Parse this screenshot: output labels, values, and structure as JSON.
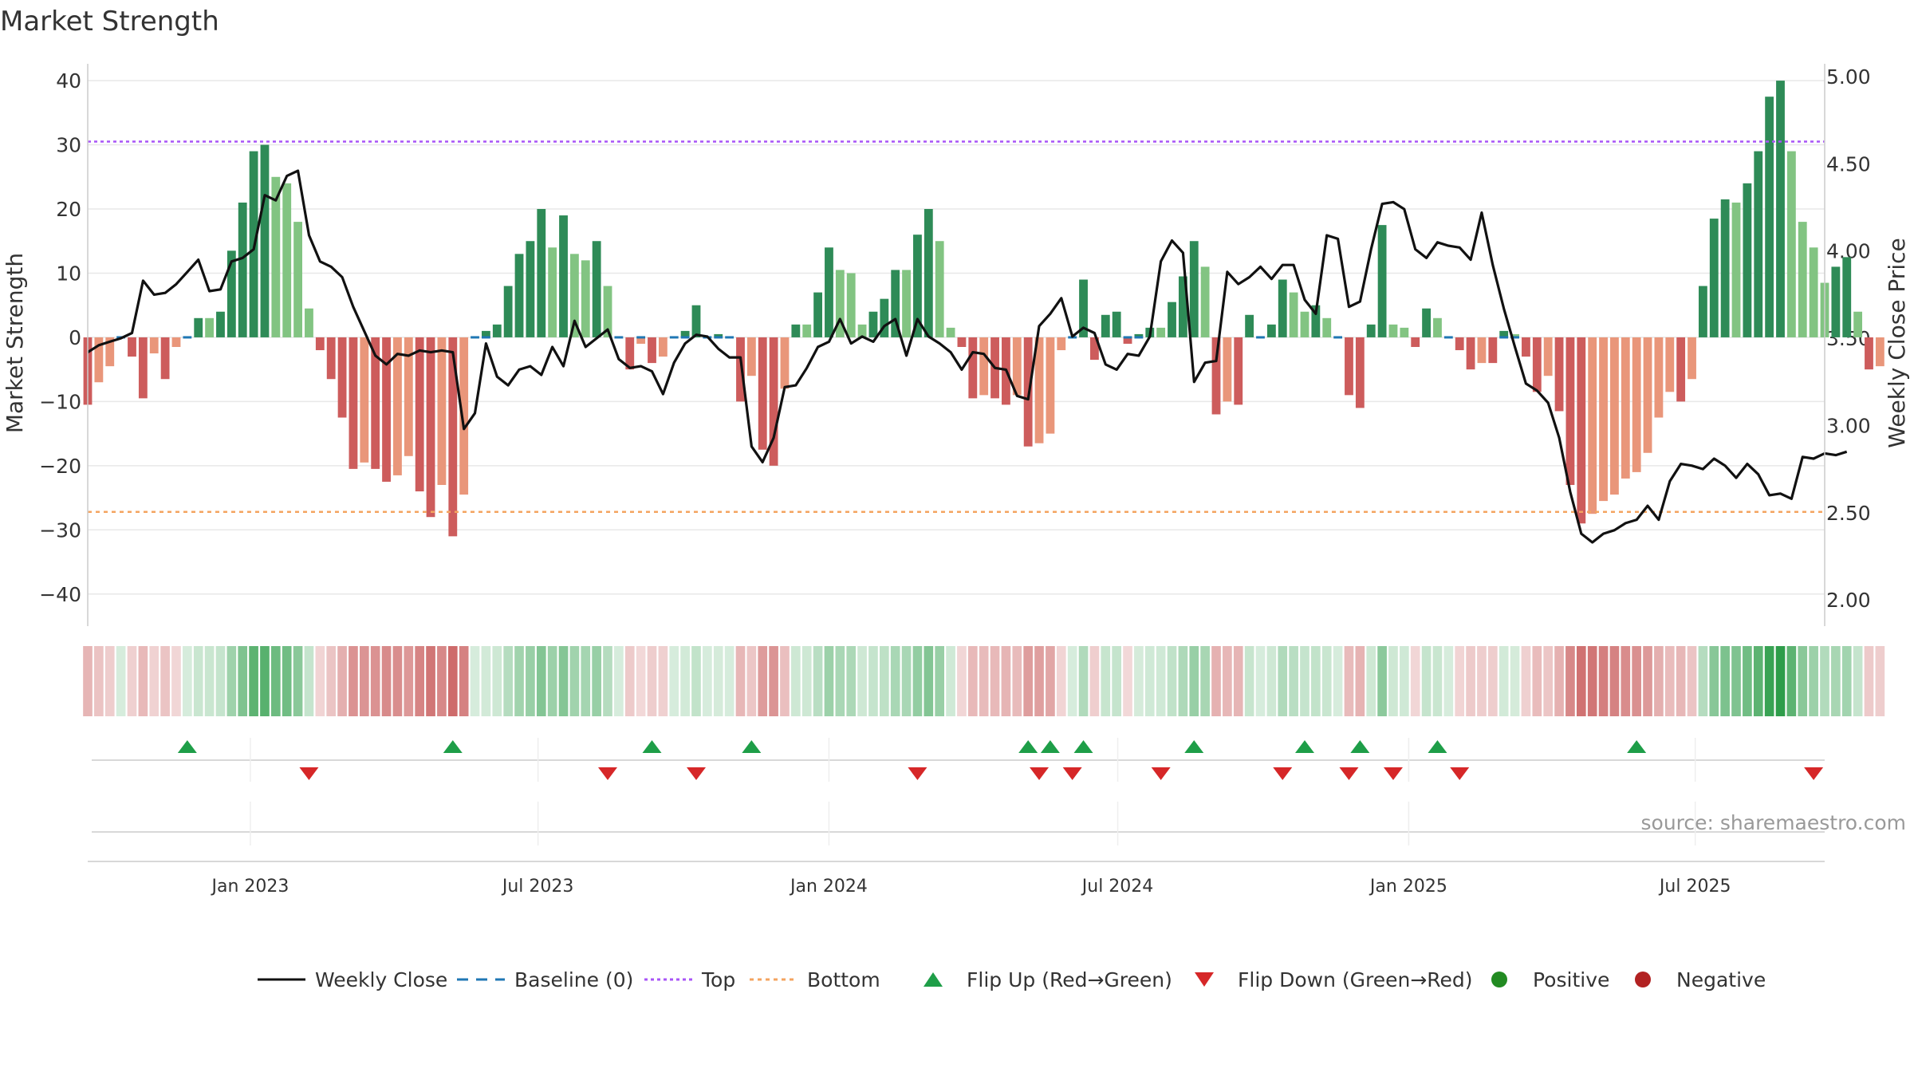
{
  "chart_data": {
    "type": "bar",
    "title": "Market Strength",
    "ylabel_left": "Market Strength",
    "ylabel_right": "Weekly Close Price",
    "source": "source: sharemaestro.com",
    "ylim_left": [
      -45,
      42
    ],
    "ylim_right": [
      1.85,
      5.05
    ],
    "yticks_left": [
      40,
      30,
      20,
      10,
      0,
      -10,
      -20,
      -30,
      -40
    ],
    "ytick_labels_left": [
      "40",
      "30",
      "20",
      "10",
      "0",
      "−10",
      "−20",
      "−30",
      "−40"
    ],
    "yticks_right": [
      5.0,
      4.5,
      4.0,
      3.5,
      3.0,
      2.5,
      2.0
    ],
    "ytick_labels_right": [
      "5.00",
      "4.50",
      "4.00",
      "3.50",
      "3.00",
      "2.50",
      "2.00"
    ],
    "x_range_weeks": [
      0,
      157
    ],
    "x_ticks": [
      {
        "label": "Jan 2023",
        "week": 14.7
      },
      {
        "label": "Jul 2023",
        "week": 40.7
      },
      {
        "label": "Jan 2024",
        "week": 67.0
      },
      {
        "label": "Jul 2024",
        "week": 93.1
      },
      {
        "label": "Jan 2025",
        "week": 119.4
      },
      {
        "label": "Jul 2025",
        "week": 145.3
      }
    ],
    "top_level": 30.5,
    "bottom_level": -27.2,
    "strength": [
      -10.5,
      -7,
      -4.5,
      0,
      -3,
      -9.5,
      -2.5,
      -6.5,
      -1.5,
      0,
      3,
      3,
      4,
      13.5,
      21,
      29,
      30,
      25,
      24,
      18,
      4.5,
      -2,
      -6.5,
      -12.5,
      -20.5,
      -19.5,
      -20.5,
      -22.5,
      -21.5,
      -18.5,
      -24,
      -28,
      -23,
      -31,
      -24.5,
      0,
      1,
      2,
      8,
      13,
      15,
      20,
      14,
      19,
      13,
      12,
      15,
      8,
      0,
      -5,
      -1,
      -4,
      -3,
      0,
      1,
      5,
      0,
      0.5,
      0,
      -10,
      -6,
      -17.5,
      -20,
      -8,
      2,
      2,
      7,
      14,
      10.5,
      10,
      2,
      4,
      6,
      10.5,
      10.5,
      16,
      20,
      15,
      1.5,
      -1.5,
      -9.5,
      -9,
      -9.5,
      -10.5,
      -9,
      -17,
      -16.5,
      -15,
      -2,
      0,
      9,
      -3.5,
      3.5,
      4,
      -1,
      0.5,
      1.5,
      1.5,
      5.5,
      9.5,
      15,
      11,
      -12,
      -10,
      -10.5,
      3.5,
      0,
      2,
      9,
      7,
      4,
      5,
      3,
      0,
      -9,
      -11,
      2,
      17.5,
      2,
      1.5,
      -1.5,
      4.5,
      3,
      0,
      -2,
      -5,
      -4,
      -4,
      1,
      0.5,
      -3,
      -8.5,
      -6,
      -11.5,
      -23,
      -29,
      -27.5,
      -25.5,
      -24.5,
      -22,
      -21,
      -18,
      -12.5,
      -8.5,
      -10,
      -6.5,
      8,
      18.5,
      21.5,
      21,
      24,
      29,
      37.5,
      40,
      29,
      18,
      14,
      8.5,
      11,
      12.5,
      4,
      -5,
      -4.5
    ],
    "weekly_close": [
      3.42,
      3.46,
      3.48,
      3.5,
      3.53,
      3.83,
      3.75,
      3.76,
      3.81,
      3.88,
      3.95,
      3.77,
      3.78,
      3.94,
      3.96,
      4.01,
      4.32,
      4.29,
      4.43,
      4.46,
      4.09,
      3.94,
      3.91,
      3.85,
      3.68,
      3.54,
      3.4,
      3.35,
      3.41,
      3.4,
      3.43,
      3.42,
      3.43,
      3.42,
      2.98,
      3.07,
      3.47,
      3.28,
      3.23,
      3.32,
      3.34,
      3.29,
      3.45,
      3.34,
      3.6,
      3.45,
      3.5,
      3.55,
      3.38,
      3.33,
      3.34,
      3.31,
      3.18,
      3.36,
      3.47,
      3.52,
      3.51,
      3.44,
      3.39,
      3.39,
      2.88,
      2.79,
      2.93,
      3.22,
      3.23,
      3.33,
      3.45,
      3.48,
      3.61,
      3.47,
      3.51,
      3.48,
      3.57,
      3.61,
      3.4,
      3.61,
      3.51,
      3.47,
      3.42,
      3.32,
      3.42,
      3.41,
      3.33,
      3.32,
      3.17,
      3.15,
      3.57,
      3.64,
      3.73,
      3.51,
      3.56,
      3.53,
      3.35,
      3.32,
      3.41,
      3.4,
      3.51,
      3.94,
      4.06,
      3.99,
      3.25,
      3.36,
      3.37,
      3.88,
      3.81,
      3.85,
      3.91,
      3.84,
      3.92,
      3.92,
      3.72,
      3.64,
      4.09,
      4.07,
      3.68,
      3.71,
      4.01,
      4.27,
      4.28,
      4.24,
      4.01,
      3.96,
      4.05,
      4.03,
      4.02,
      3.95,
      4.22,
      3.92,
      3.67,
      3.45,
      3.24,
      3.2,
      3.13,
      2.93,
      2.62,
      2.38,
      2.33,
      2.38,
      2.4,
      2.44,
      2.46,
      2.54,
      2.46,
      2.68,
      2.78,
      2.77,
      2.75,
      2.81,
      2.77,
      2.7,
      2.78,
      2.72,
      2.6,
      2.61,
      2.58,
      2.82,
      2.81,
      2.84,
      2.83,
      2.85
    ],
    "heat_strip": [
      -10.5,
      -7,
      -4.5,
      0,
      -3,
      -9.5,
      -2.5,
      -6.5,
      -1.5,
      0,
      3,
      3,
      4,
      13.5,
      21,
      29,
      30,
      25,
      24,
      18,
      4.5,
      -2,
      -6.5,
      -12.5,
      -20.5,
      -19.5,
      -20.5,
      -22.5,
      -21.5,
      -18.5,
      -24,
      -28,
      -23,
      -31,
      -24.5,
      0,
      1,
      2,
      8,
      13,
      15,
      20,
      14,
      19,
      13,
      12,
      15,
      8,
      0,
      -5,
      -1,
      -4,
      -3,
      0,
      1,
      5,
      0,
      0.5,
      0,
      -10,
      -6,
      -17.5,
      -20,
      -8,
      2,
      2,
      7,
      14,
      10.5,
      10,
      2,
      4,
      6,
      10.5,
      10.5,
      16,
      20,
      15,
      1.5,
      -1.5,
      -9.5,
      -9,
      -9.5,
      -10.5,
      -9,
      -17,
      -16.5,
      -15,
      -2,
      0,
      9,
      -3.5,
      3.5,
      4,
      -1,
      0.5,
      1.5,
      1.5,
      5.5,
      9.5,
      15,
      11,
      -12,
      -10,
      -10.5,
      3.5,
      0,
      2,
      9,
      7,
      4,
      5,
      3,
      0,
      -9,
      -11,
      2,
      17.5,
      2,
      1.5,
      -1.5,
      4.5,
      3,
      0,
      -2,
      -5,
      -4,
      -4,
      1,
      0.5,
      -3,
      -8.5,
      -6,
      -11.5,
      -23,
      -29,
      -27.5,
      -25.5,
      -24.5,
      -22,
      -21,
      -18,
      -12.5,
      -8.5,
      -10,
      -6.5,
      8,
      18.5,
      21.5,
      21,
      24,
      29,
      37.5,
      40,
      29,
      18,
      14,
      8.5,
      11,
      12.5,
      4,
      -5,
      -4.5
    ],
    "flip_up_weeks": [
      9,
      33,
      51,
      60,
      85,
      87,
      90,
      100,
      110,
      115,
      122,
      140
    ],
    "flip_down_weeks": [
      20,
      47,
      55,
      75,
      86,
      89,
      97,
      108,
      114,
      118,
      124,
      156
    ],
    "colors": {
      "strong_green": "#2e8b57",
      "light_green": "#82c482",
      "strong_red": "#cd5c5c",
      "light_red": "#e9967a",
      "line": "#111111",
      "baseline": "#1f77b4",
      "top": "#a855f7",
      "bottom": "#f4a460",
      "flip_up": "#1e9e48",
      "flip_down": "#d62728",
      "positive": "#228b22",
      "negative": "#b22222",
      "grid": "#e8e8e8",
      "axis": "#cccccc"
    },
    "legend": [
      {
        "label": "Weekly Close",
        "kind": "line"
      },
      {
        "label": "Baseline (0)",
        "kind": "baseline"
      },
      {
        "label": "Top",
        "kind": "top"
      },
      {
        "label": "Bottom",
        "kind": "bottom"
      },
      {
        "label": "Flip Up (Red→Green)",
        "kind": "flip_up"
      },
      {
        "label": "Flip Down (Green→Red)",
        "kind": "flip_down"
      },
      {
        "label": "Positive",
        "kind": "positive"
      },
      {
        "label": "Negative",
        "kind": "negative"
      }
    ]
  }
}
